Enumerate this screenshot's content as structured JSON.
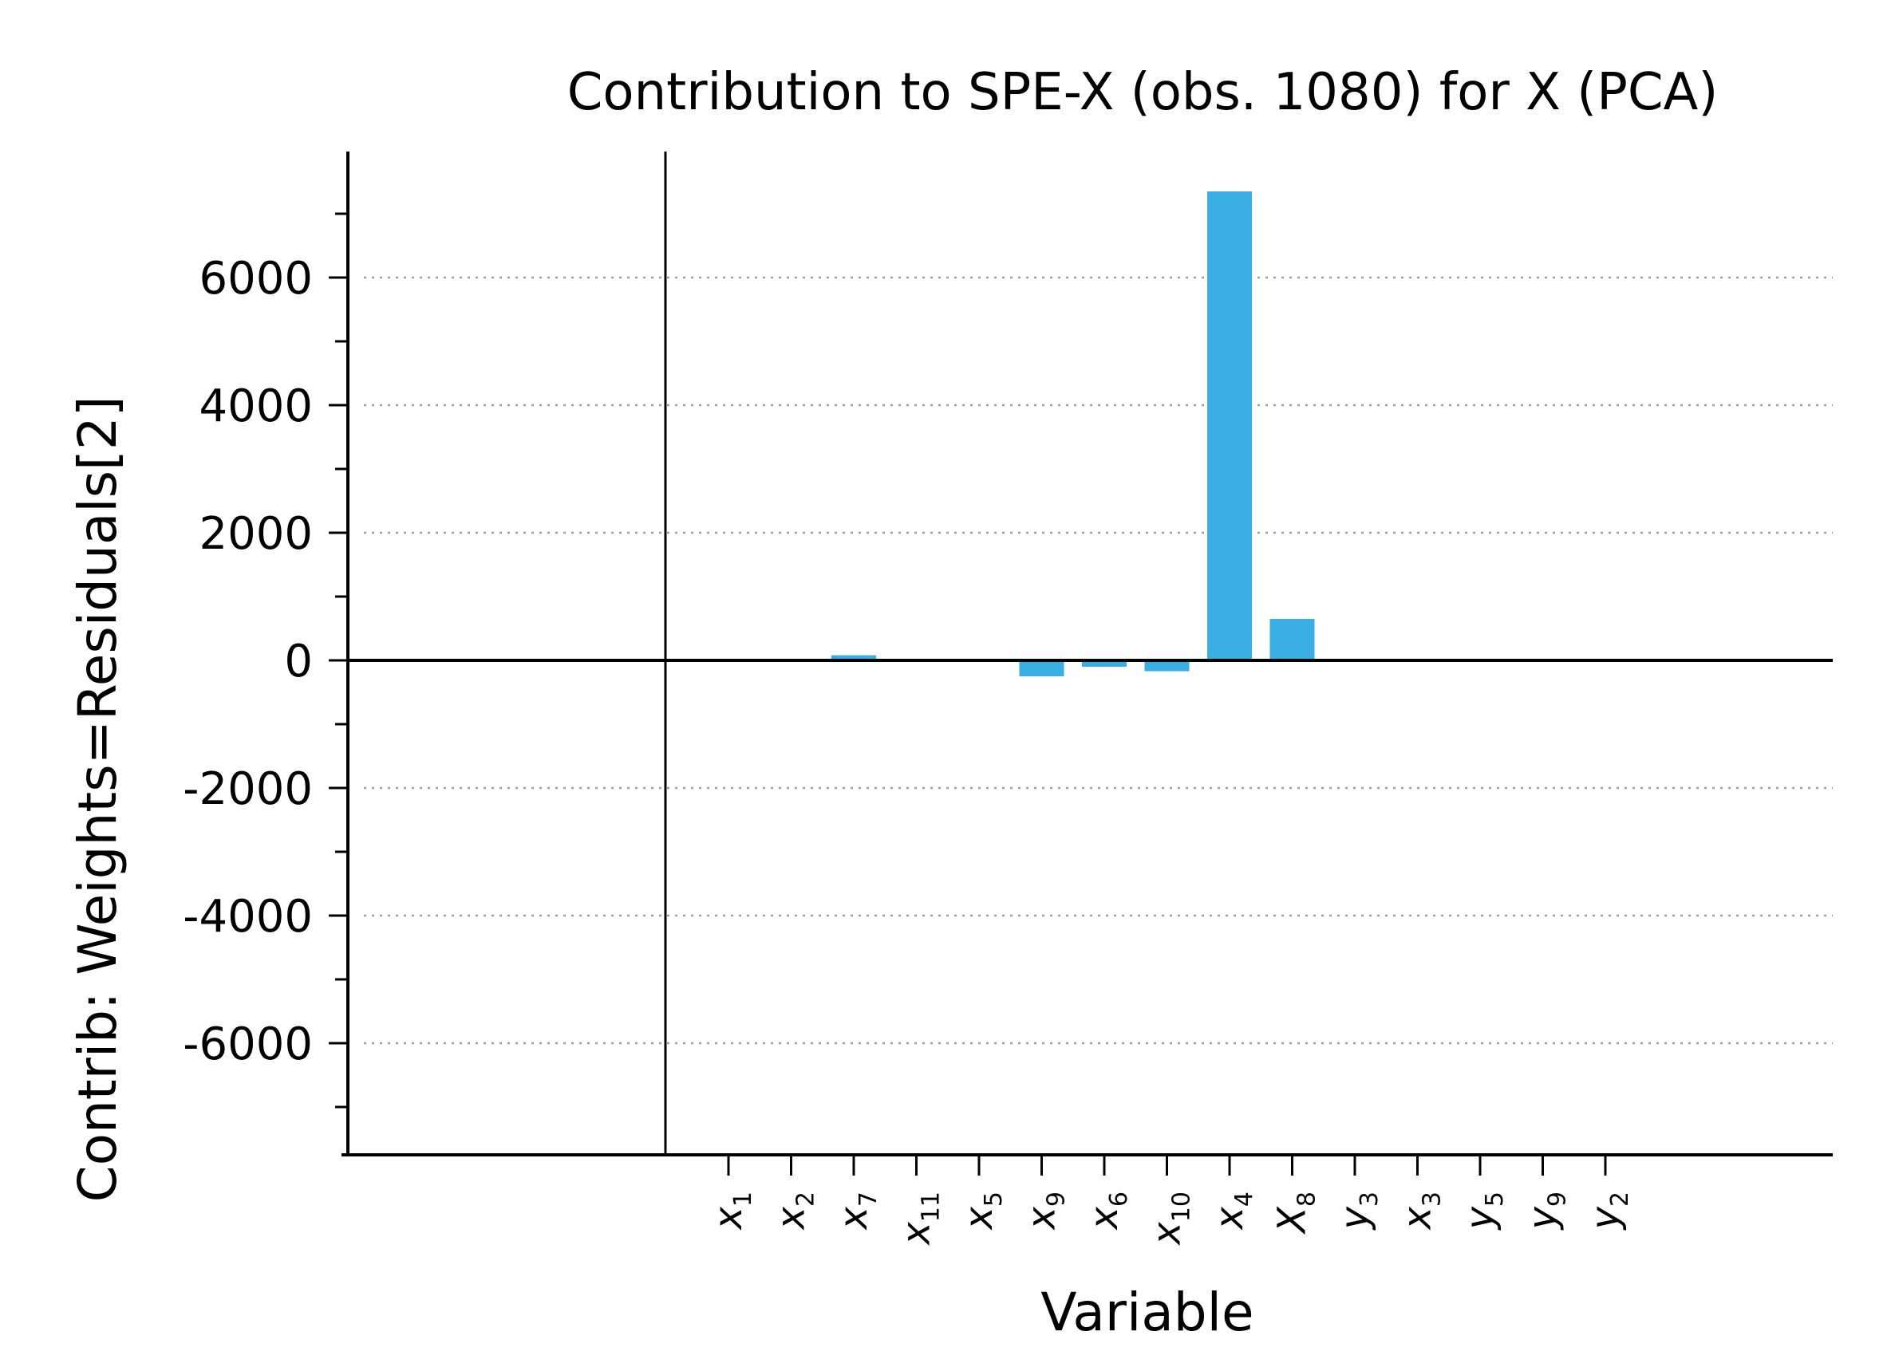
{
  "chart_data": {
    "type": "bar",
    "title": "Contribution to SPE-X (obs. 1080) for X (PCA)",
    "xlabel": "Variable",
    "ylabel": "Contrib: Weights=Residuals[2]",
    "ylim": [
      -7800,
      8000
    ],
    "yticks": [
      -6000,
      -4000,
      -2000,
      0,
      2000,
      4000,
      6000
    ],
    "ytick_labels": [
      "-6000",
      "-4000",
      "-2000",
      "0",
      "2000",
      "4000",
      "6000"
    ],
    "categories": [
      {
        "base": "x",
        "sub": "1"
      },
      {
        "base": "x",
        "sub": "2"
      },
      {
        "base": "x",
        "sub": "7"
      },
      {
        "base": "x",
        "sub": "11"
      },
      {
        "base": "x",
        "sub": "5"
      },
      {
        "base": "x",
        "sub": "9"
      },
      {
        "base": "x",
        "sub": "6"
      },
      {
        "base": "x",
        "sub": "10"
      },
      {
        "base": "x",
        "sub": "4"
      },
      {
        "base": "X",
        "sub": "8"
      },
      {
        "base": "y",
        "sub": "3"
      },
      {
        "base": "x",
        "sub": "3"
      },
      {
        "base": "y",
        "sub": "5"
      },
      {
        "base": "y",
        "sub": "9"
      },
      {
        "base": "y",
        "sub": "2"
      }
    ],
    "values": [
      0,
      0,
      80,
      0,
      0,
      -250,
      -100,
      -170,
      7350,
      650,
      0,
      0,
      0,
      0,
      0
    ],
    "grid": true,
    "bar_color": "#3aaee2",
    "axis_color": "#000000",
    "grid_color": "#a0a0a0"
  }
}
